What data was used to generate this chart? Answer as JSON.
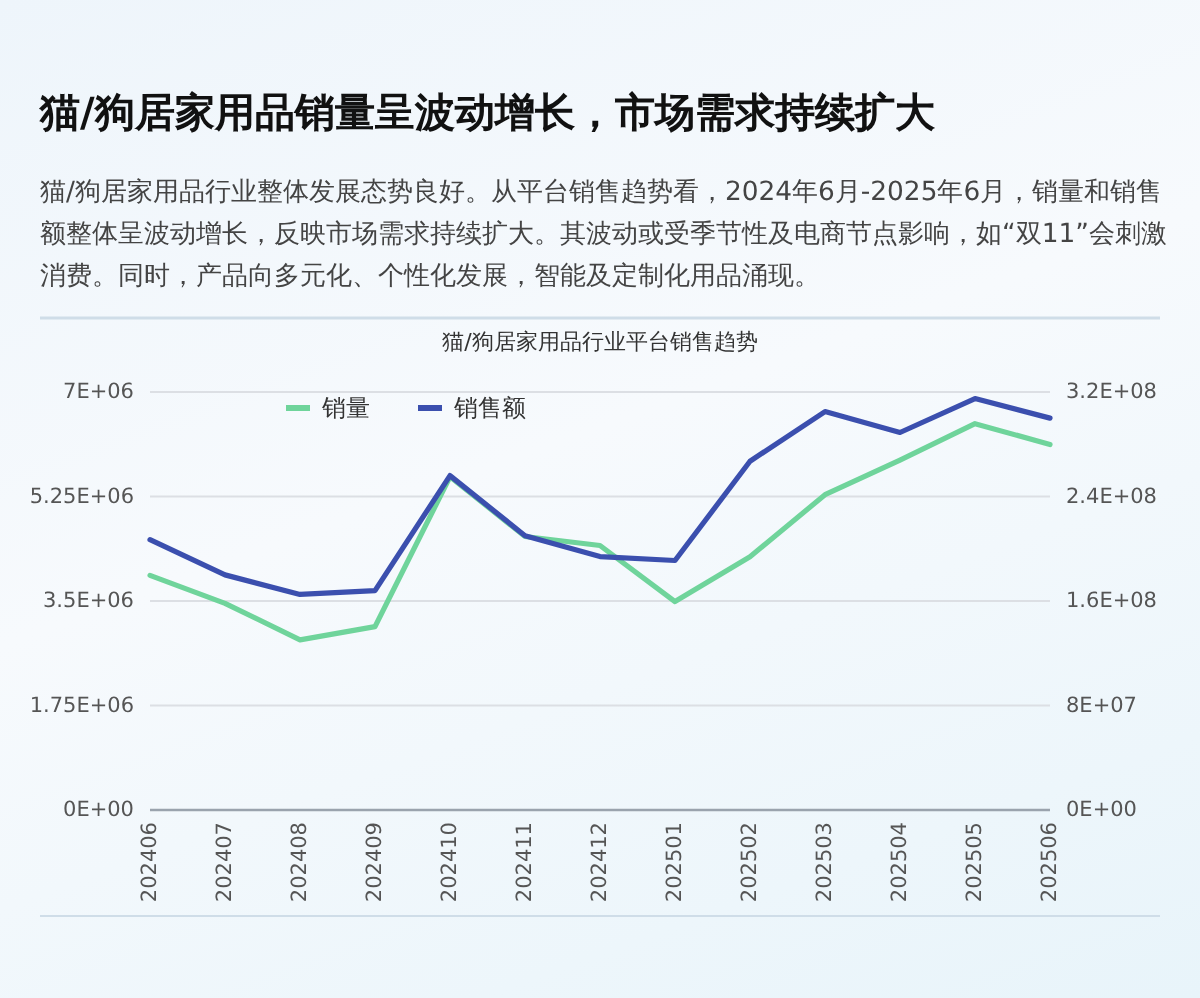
{
  "chart_data": {
    "type": "line",
    "title": "猫/狗居家用品销量呈波动增长，市场需求持续扩大",
    "subtitle": "猫/狗居家用品行业整体发展态势良好。从平台销售趋势看，2024年6月-2025年6月，销量和销售额整体呈波动增长，反映市场需求持续扩大。其波动或受季节性及电商节点影响，如“双11”会刺激消费。同时，产品向多元化、个性化发展，智能及定制化用品涌现。",
    "annotations": [
      "猫/狗居家用品行业平台销售趋势"
    ],
    "categories": [
      "202406",
      "202407",
      "202408",
      "202409",
      "202410",
      "202411",
      "202412",
      "202501",
      "202502",
      "202503",
      "202504",
      "202505",
      "202506"
    ],
    "series": [
      {
        "name": "销量",
        "color": "#6fd49b",
        "values": [
          3930000,
          3460000,
          2850000,
          3070000,
          5580000,
          4580000,
          4430000,
          3490000,
          4240000,
          5280000,
          5860000,
          6470000,
          6120000
        ]
      },
      {
        "name": "销售额",
        "color": "#3b4fae",
        "axis": "y2",
        "values": [
          207000000,
          180000000,
          165000000,
          168000000,
          256000000,
          210000000,
          194000000,
          191000000,
          267000000,
          305000000,
          289000000,
          315000000,
          300000000
        ]
      }
    ],
    "ylim": [
      0,
      7000000
    ],
    "yticks": [
      {
        "value": 0,
        "label": "0E+00"
      },
      {
        "value": 1750000,
        "label": "1.75E+06"
      },
      {
        "value": 3500000,
        "label": "3.5E+06"
      },
      {
        "value": 5250000,
        "label": "5.25E+06"
      },
      {
        "value": 7000000,
        "label": "7E+06"
      }
    ],
    "y2lim": [
      0,
      320000000
    ],
    "y2ticks": [
      {
        "value": 0,
        "label": "0E+00"
      },
      {
        "value": 80000000,
        "label": "8E+07"
      },
      {
        "value": 160000000,
        "label": "1.6E+08"
      },
      {
        "value": 240000000,
        "label": "2.4E+08"
      },
      {
        "value": 320000000,
        "label": "3.2E+08"
      }
    ],
    "grid": "y",
    "legend": "top left"
  }
}
